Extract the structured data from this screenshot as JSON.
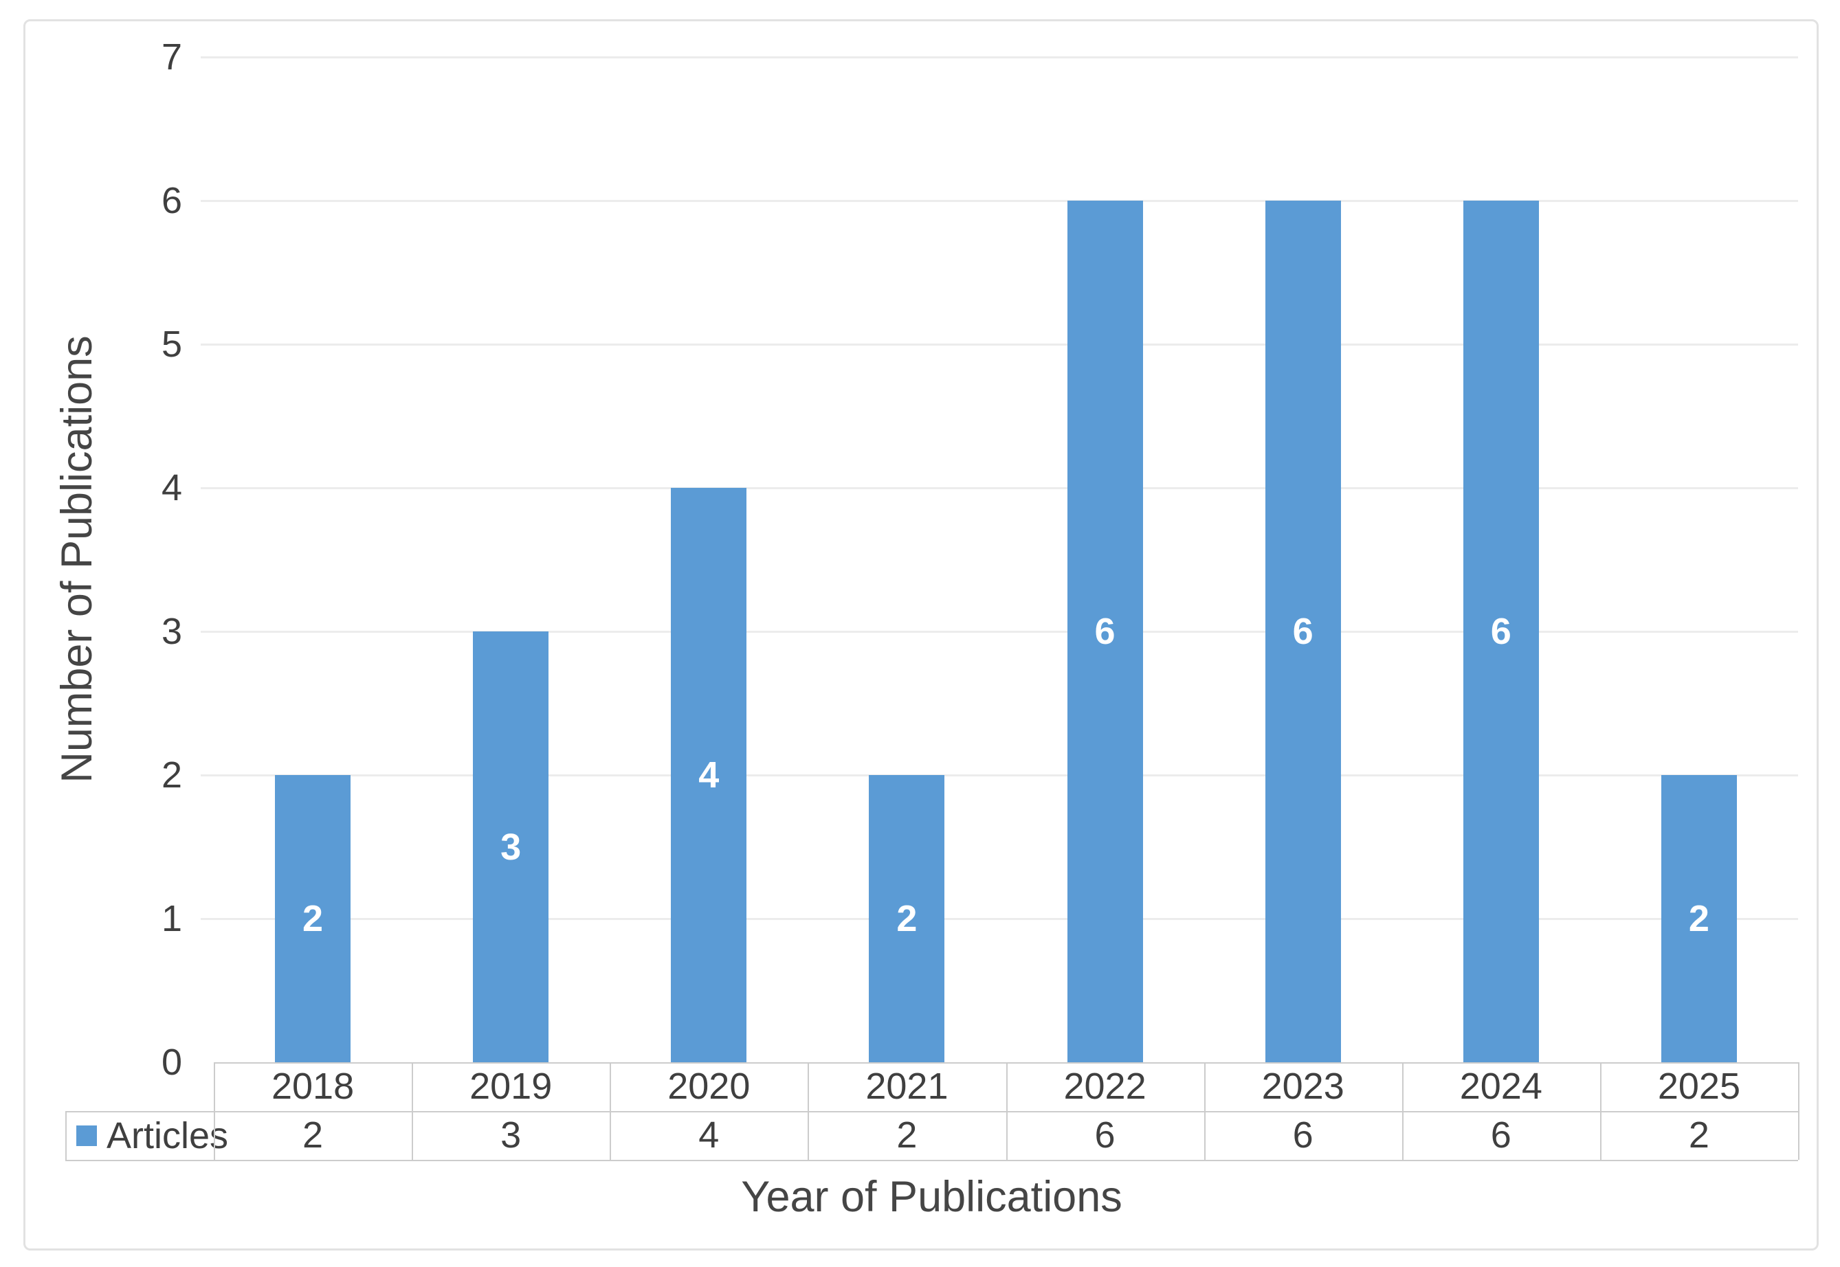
{
  "chart_data": {
    "type": "bar",
    "title": "",
    "categories": [
      "2018",
      "2019",
      "2020",
      "2021",
      "2022",
      "2023",
      "2024",
      "2025"
    ],
    "series": [
      {
        "name": "Articles",
        "values": [
          2,
          3,
          4,
          2,
          6,
          6,
          6,
          2
        ]
      }
    ],
    "xlabel": "Year of Publications",
    "ylabel": "Number of Publications",
    "ylim": [
      0,
      7
    ],
    "yticks": [
      0,
      1,
      2,
      3,
      4,
      5,
      6,
      7
    ],
    "grid": true,
    "legend_position": "data-table-left",
    "data_labels": {
      "visible": true,
      "position": "inside-center",
      "color": "#FFFFFF"
    },
    "colors": {
      "bar": "#5B9BD5",
      "gridline": "#ECECEC",
      "table_border": "#CCCCCC",
      "text": "#3F3F3F",
      "axis_title": "#454545",
      "frame_border": "#E2E2E2"
    }
  }
}
